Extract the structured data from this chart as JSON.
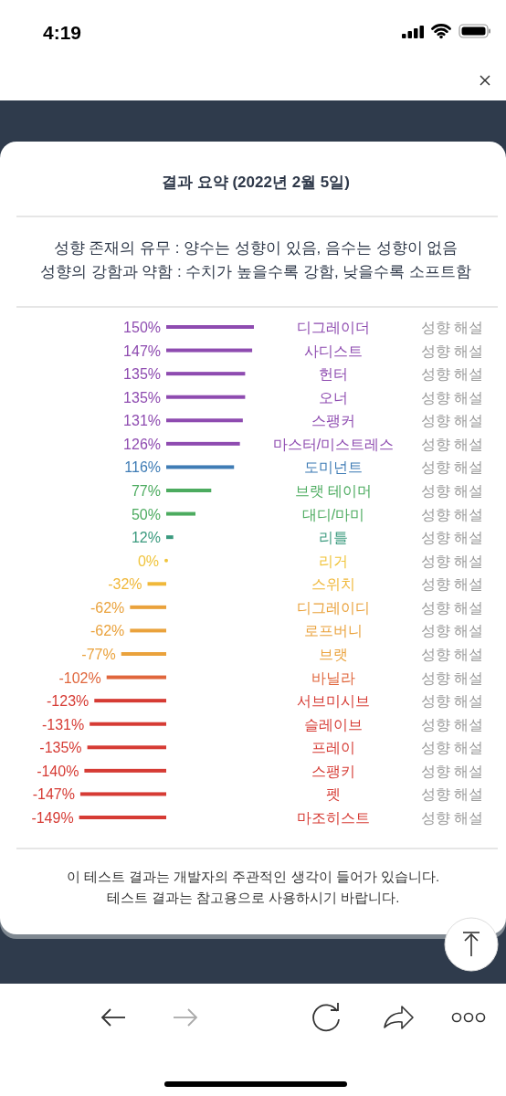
{
  "chart_data": {
    "type": "bar",
    "orientation": "horizontal",
    "title": "결과 요약 (2022년 2월 5일)",
    "subtitle": "성향 존재의 유무 : 양수는 성향이 있음, 음수는 성향이 없음\n성향의 강함과 약함 : 수치가 높을수록 강함, 낮을수록 소프트함",
    "categories": [
      "디그레이더",
      "사디스트",
      "헌터",
      "오너",
      "스팽커",
      "마스터/미스트레스",
      "도미넌트",
      "브랫 테이머",
      "대디/마미",
      "리틀",
      "리거",
      "스위치",
      "디그레이디",
      "로프버니",
      "브랫",
      "바닐라",
      "서브미시브",
      "슬레이브",
      "프레이",
      "스팽키",
      "펫",
      "마조히스트"
    ],
    "values": [
      150,
      147,
      135,
      135,
      131,
      126,
      116,
      77,
      50,
      12,
      0,
      -32,
      -62,
      -62,
      -77,
      -102,
      -123,
      -131,
      -135,
      -140,
      -147,
      -149
    ],
    "value_labels": [
      "150%",
      "147%",
      "135%",
      "135%",
      "131%",
      "126%",
      "116%",
      "77%",
      "50%",
      "12%",
      "0%",
      "-32%",
      "-62%",
      "-62%",
      "-77%",
      "-102%",
      "-123%",
      "-131%",
      "-135%",
      "-140%",
      "-147%",
      "-149%"
    ],
    "colors": [
      "#8e4bb0",
      "#8e4bb0",
      "#8e4bb0",
      "#8e4bb0",
      "#8e4bb0",
      "#8e4bb0",
      "#3f7cb5",
      "#4cab5f",
      "#4cab5f",
      "#3a9a7e",
      "#f0c43c",
      "#f0b83a",
      "#eaa23c",
      "#eaa23c",
      "#eaa23c",
      "#e0663c",
      "#d63b34",
      "#d63b34",
      "#d63b34",
      "#d63b34",
      "#d63b34",
      "#d63b34"
    ],
    "tick_labels": "y",
    "annotations": [
      "4:19",
      "성향 해설",
      "성향 해설",
      "성향 해설",
      "성향 해설",
      "성향 해설",
      "성향 해설",
      "성향 해설",
      "성향 해설",
      "성향 해설",
      "성향 해설",
      "성향 해설",
      "성향 해설",
      "성향 해설",
      "성향 해설",
      "성향 해설",
      "성향 해설",
      "성향 해설",
      "성향 해설",
      "성향 해설",
      "성향 해설",
      "성향 해설",
      "성향 해설",
      "이 테스트 결과는 개발자의 주관적인 생각이 들어가 있습니다.",
      "테스트 결과는 참고용으로 사용하시기 바랍니다."
    ]
  }
}
